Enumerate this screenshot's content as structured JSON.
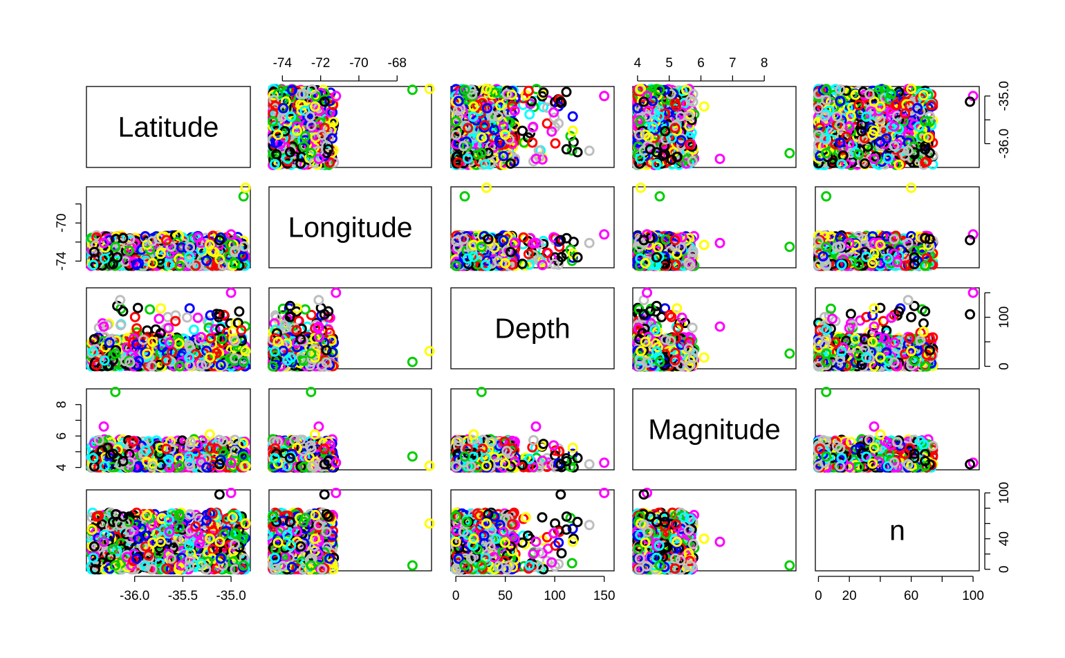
{
  "chart_data": {
    "type": "scatter-matrix",
    "variables": [
      "Latitude",
      "Longitude",
      "Depth",
      "Magnitude",
      "n"
    ],
    "ranges": {
      "Latitude": [
        -36.5,
        -34.8
      ],
      "Longitude": [
        -74.7,
        -66.2
      ],
      "Depth": [
        -5,
        160
      ],
      "Magnitude": [
        3.85,
        9.0
      ],
      "n": [
        -2,
        104
      ]
    },
    "ticks": {
      "Latitude": [
        -36.0,
        -35.5,
        -35.0
      ],
      "Longitude": [
        -74,
        -72,
        -70,
        -68
      ],
      "Depth": [
        0,
        50,
        100,
        150
      ],
      "Magnitude": [
        4,
        5,
        6,
        7,
        8
      ],
      "n": [
        0,
        20,
        40,
        60,
        80,
        100
      ]
    },
    "tick_labels": {
      "Latitude": [
        "-36.0",
        "-35.5",
        "-35.0"
      ],
      "Longitude": [
        "-74",
        "-72",
        "-70",
        "-68"
      ],
      "Depth_bottom": [
        "0",
        "50",
        "100",
        "150"
      ],
      "Depth_right": [
        "0",
        "100"
      ],
      "Magnitude_top": [
        "4",
        "5",
        "6",
        "7",
        "8"
      ],
      "Magnitude_left": [
        "4",
        "6",
        "8"
      ],
      "Longitude_left": [
        "-74",
        "-70"
      ],
      "Latitude_right": [
        "-36.0",
        "-35.0"
      ],
      "n_bottom": [
        "0",
        "20",
        "60",
        "100"
      ],
      "n_right": [
        "0",
        "40",
        "100"
      ]
    },
    "point_colors": [
      "#000000",
      "#DF536B",
      "#61D04F",
      "#2297E6",
      "#28E2E5",
      "#CD0BBC",
      "#F5C710",
      "#9E9E9E"
    ],
    "series_colors_legacy": [
      "#000000",
      "#FF0000",
      "#00CD00",
      "#0000FF",
      "#00FFFF",
      "#FF00FF",
      "#FFFF00",
      "#BEBEBE"
    ],
    "records": [
      {
        "lat": -36.43,
        "lon": -74.4,
        "depth": 30,
        "mag": 4.6,
        "n": 15
      },
      {
        "lat": -34.87,
        "lon": -67.2,
        "depth": 9,
        "mag": 4.7,
        "n": 5
      },
      {
        "lat": -34.85,
        "lon": -66.3,
        "depth": 31,
        "mag": 4.1,
        "n": 60
      },
      {
        "lat": -36.18,
        "lon": -73.6,
        "depth": 123,
        "mag": 4.6,
        "n": 62
      },
      {
        "lat": -36.15,
        "lon": -72.1,
        "depth": 135,
        "mag": 4.2,
        "n": 58
      },
      {
        "lat": -36.12,
        "lon": -71.6,
        "depth": 112,
        "mag": 4.4,
        "n": 69
      },
      {
        "lat": -35.0,
        "lon": -71.2,
        "depth": 150,
        "mag": 4.3,
        "n": 100
      },
      {
        "lat": -35.12,
        "lon": -71.8,
        "depth": 106,
        "mag": 4.2,
        "n": 98
      },
      {
        "lat": -36.32,
        "lon": -72.1,
        "depth": 81,
        "mag": 6.6,
        "n": 36
      },
      {
        "lat": -35.22,
        "lon": -72.3,
        "depth": 18,
        "mag": 6.1,
        "n": 40
      },
      {
        "lat": -36.2,
        "lon": -72.5,
        "depth": 26,
        "mag": 8.8,
        "n": 5
      }
    ]
  }
}
